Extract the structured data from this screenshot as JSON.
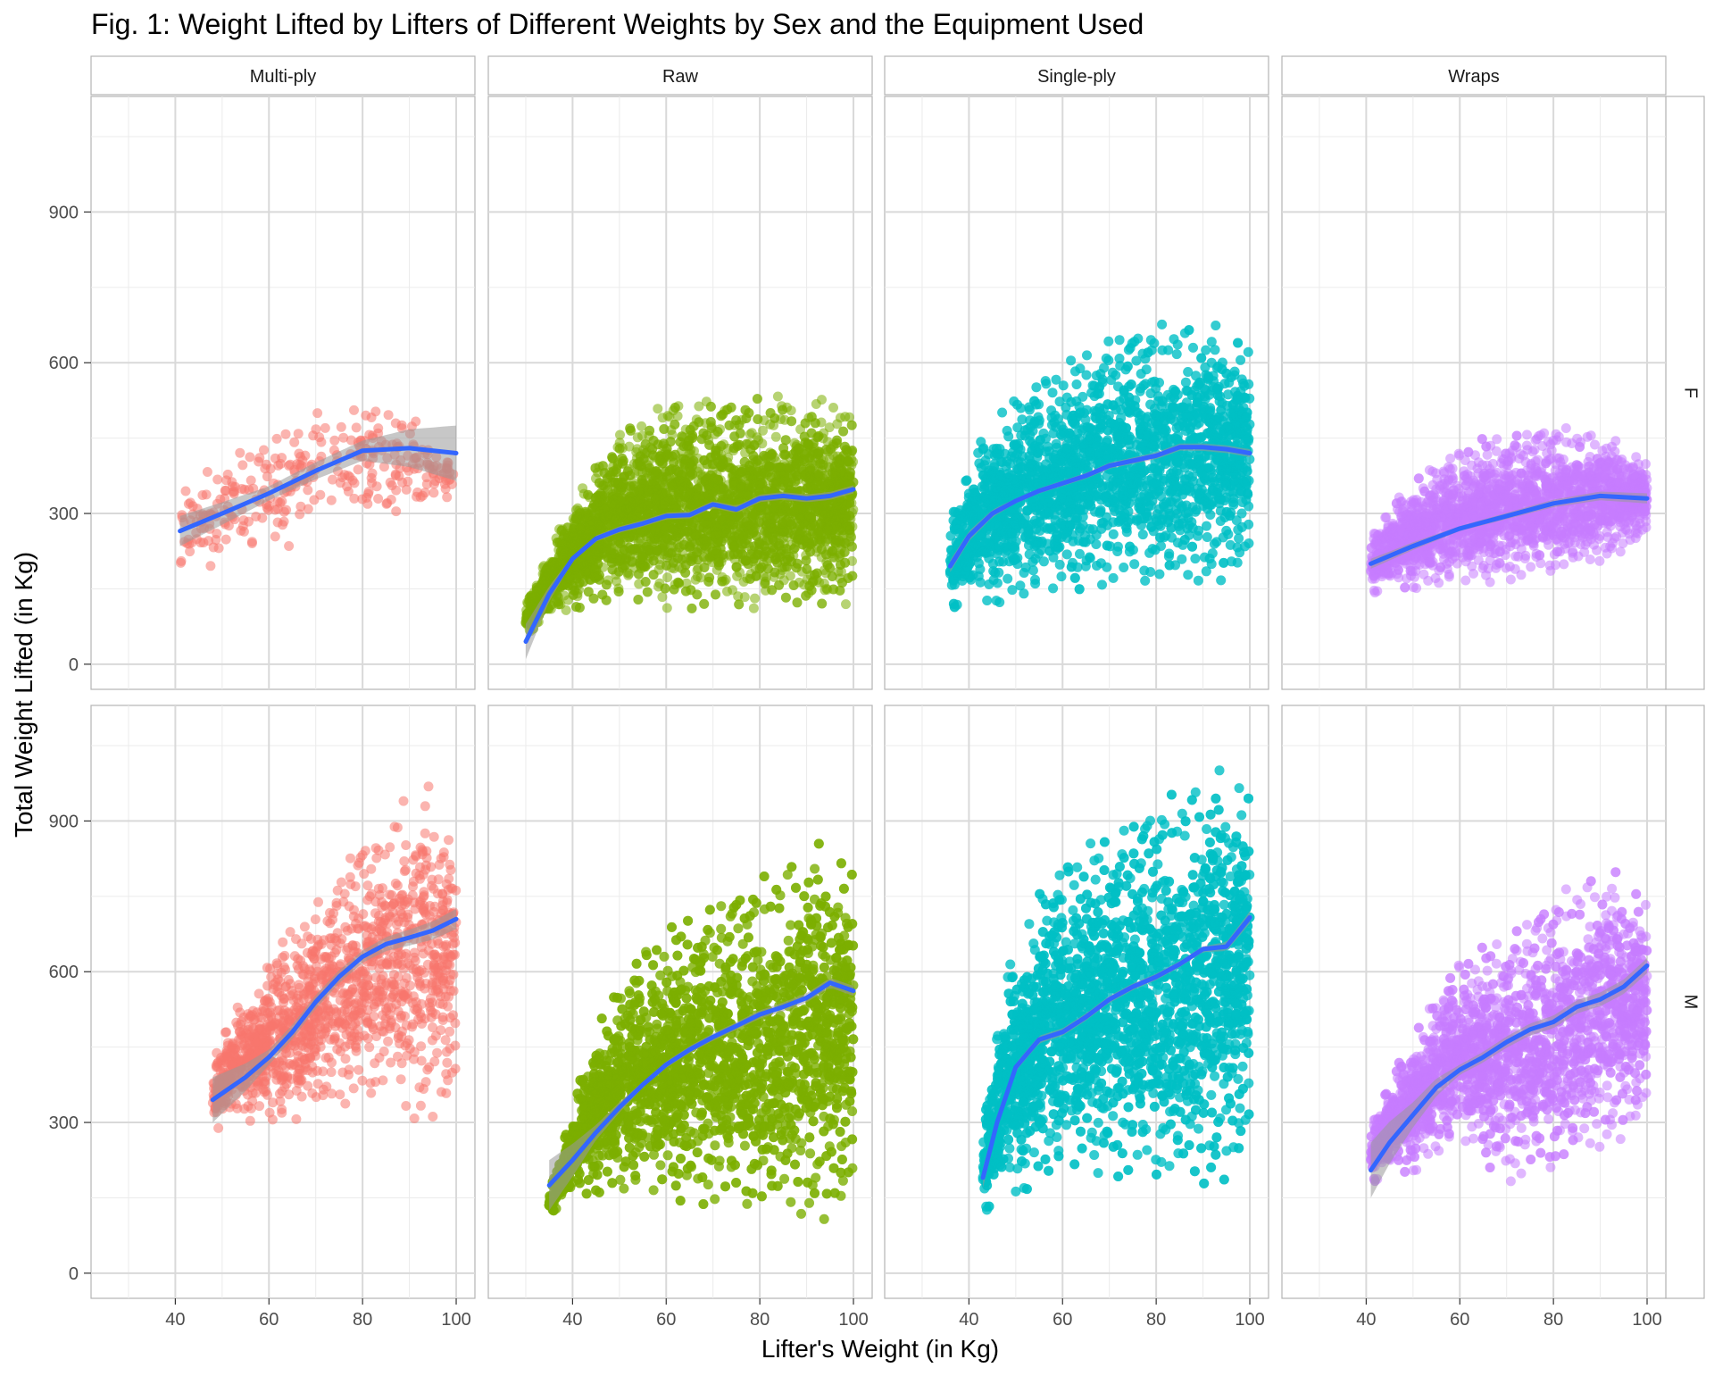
{
  "chart_data": {
    "type": "scatter",
    "title": "Fig. 1: Weight Lifted by Lifters of Different Weights by Sex and the Equipment Used",
    "xlabel": "Lifter's Weight (in Kg)",
    "ylabel": "Total Weight Lifted (in Kg)",
    "xlim": [
      22,
      104
    ],
    "ylim": [
      -50,
      1130
    ],
    "x_ticks": [
      "40",
      "60",
      "80",
      "100"
    ],
    "y_ticks": [
      "0",
      "300",
      "600",
      "900"
    ],
    "grid": true,
    "legend": "none",
    "columns": [
      "Multi-ply",
      "Raw",
      "Single-ply",
      "Wraps"
    ],
    "rows": [
      "F",
      "M"
    ],
    "colors": {
      "Multi-ply": "#F8766D",
      "Raw": "#7CAE00",
      "Single-ply": "#00BFC4",
      "Wraps": "#C77CFF",
      "smooth": "#3366FF",
      "ribbon": "#999999",
      "strip_fill": "#FFFFFF",
      "strip_border": "#B3B3B3",
      "grid_major": "#D9D9D9",
      "grid_minor": "#EBEBEB"
    },
    "panels": [
      {
        "equipment": "Multi-ply",
        "sex": "F",
        "x_range": [
          41,
          100
        ],
        "y_band": [
          [
            41,
            175,
            360
          ],
          [
            60,
            220,
            460
          ],
          [
            75,
            240,
            560
          ],
          [
            88,
            300,
            520
          ],
          [
            100,
            330,
            400
          ]
        ],
        "n_points": 320,
        "smooth": [
          [
            41,
            265
          ],
          [
            50,
            300
          ],
          [
            60,
            340
          ],
          [
            70,
            385
          ],
          [
            80,
            425
          ],
          [
            90,
            430
          ],
          [
            100,
            420
          ]
        ],
        "ribbon_halfwidth": [
          [
            41,
            30
          ],
          [
            60,
            14
          ],
          [
            80,
            20
          ],
          [
            100,
            55
          ]
        ]
      },
      {
        "equipment": "Raw",
        "sex": "F",
        "x_range": [
          30,
          100
        ],
        "y_band": [
          [
            30,
            60,
            120
          ],
          [
            40,
            110,
            330
          ],
          [
            50,
            120,
            460
          ],
          [
            60,
            110,
            520
          ],
          [
            80,
            110,
            540
          ],
          [
            100,
            120,
            530
          ]
        ],
        "n_points": 4200,
        "smooth": [
          [
            30,
            45
          ],
          [
            35,
            140
          ],
          [
            40,
            210
          ],
          [
            45,
            250
          ],
          [
            50,
            268
          ],
          [
            55,
            280
          ],
          [
            60,
            295
          ],
          [
            65,
            297
          ],
          [
            70,
            318
          ],
          [
            75,
            308
          ],
          [
            80,
            330
          ],
          [
            85,
            335
          ],
          [
            90,
            330
          ],
          [
            95,
            335
          ],
          [
            100,
            348
          ]
        ],
        "ribbon_halfwidth": [
          [
            30,
            35
          ],
          [
            35,
            15
          ],
          [
            40,
            6
          ],
          [
            100,
            8
          ]
        ]
      },
      {
        "equipment": "Single-ply",
        "sex": "F",
        "x_range": [
          36,
          100
        ],
        "y_band": [
          [
            36,
            110,
            300
          ],
          [
            45,
            120,
            500
          ],
          [
            55,
            130,
            560
          ],
          [
            70,
            160,
            660
          ],
          [
            85,
            150,
            700
          ],
          [
            100,
            170,
            690
          ]
        ],
        "n_points": 4200,
        "smooth": [
          [
            36,
            195
          ],
          [
            40,
            255
          ],
          [
            45,
            300
          ],
          [
            50,
            325
          ],
          [
            55,
            345
          ],
          [
            60,
            360
          ],
          [
            65,
            375
          ],
          [
            70,
            395
          ],
          [
            75,
            405
          ],
          [
            80,
            415
          ],
          [
            85,
            432
          ],
          [
            90,
            432
          ],
          [
            95,
            428
          ],
          [
            100,
            420
          ]
        ],
        "ribbon_halfwidth": [
          [
            36,
            12
          ],
          [
            50,
            5
          ],
          [
            100,
            8
          ]
        ]
      },
      {
        "equipment": "Wraps",
        "sex": "F",
        "x_range": [
          41,
          100
        ],
        "y_band": [
          [
            41,
            140,
            260
          ],
          [
            50,
            150,
            370
          ],
          [
            65,
            160,
            450
          ],
          [
            80,
            180,
            480
          ],
          [
            90,
            200,
            470
          ],
          [
            100,
            250,
            420
          ]
        ],
        "n_points": 2200,
        "smooth": [
          [
            41,
            200
          ],
          [
            50,
            235
          ],
          [
            60,
            270
          ],
          [
            70,
            295
          ],
          [
            80,
            320
          ],
          [
            90,
            335
          ],
          [
            100,
            330
          ]
        ],
        "ribbon_halfwidth": [
          [
            41,
            10
          ],
          [
            60,
            5
          ],
          [
            100,
            10
          ]
        ]
      },
      {
        "equipment": "Multi-ply",
        "sex": "M",
        "x_range": [
          48,
          100
        ],
        "y_band": [
          [
            48,
            280,
            440
          ],
          [
            55,
            300,
            560
          ],
          [
            65,
            290,
            690
          ],
          [
            75,
            320,
            830
          ],
          [
            85,
            360,
            900
          ],
          [
            90,
            290,
            1020
          ],
          [
            100,
            320,
            960
          ]
        ],
        "n_points": 1400,
        "smooth": [
          [
            48,
            345
          ],
          [
            55,
            390
          ],
          [
            60,
            430
          ],
          [
            65,
            480
          ],
          [
            70,
            540
          ],
          [
            75,
            590
          ],
          [
            80,
            630
          ],
          [
            85,
            655
          ],
          [
            90,
            668
          ],
          [
            95,
            682
          ],
          [
            100,
            705
          ]
        ],
        "ribbon_halfwidth": [
          [
            48,
            45
          ],
          [
            60,
            15
          ],
          [
            80,
            12
          ],
          [
            100,
            20
          ]
        ]
      },
      {
        "equipment": "Raw",
        "sex": "M",
        "x_range": [
          35,
          100
        ],
        "y_band": [
          [
            35,
            120,
            160
          ],
          [
            45,
            160,
            500
          ],
          [
            55,
            150,
            640
          ],
          [
            65,
            140,
            720
          ],
          [
            80,
            120,
            800
          ],
          [
            90,
            100,
            880
          ],
          [
            100,
            100,
            900
          ]
        ],
        "n_points": 5200,
        "smooth": [
          [
            35,
            175
          ],
          [
            40,
            225
          ],
          [
            45,
            280
          ],
          [
            50,
            330
          ],
          [
            55,
            375
          ],
          [
            60,
            415
          ],
          [
            65,
            445
          ],
          [
            70,
            470
          ],
          [
            75,
            492
          ],
          [
            80,
            515
          ],
          [
            85,
            530
          ],
          [
            90,
            548
          ],
          [
            95,
            578
          ],
          [
            100,
            562
          ]
        ],
        "ribbon_halfwidth": [
          [
            35,
            50
          ],
          [
            45,
            15
          ],
          [
            55,
            6
          ],
          [
            100,
            10
          ]
        ]
      },
      {
        "equipment": "Single-ply",
        "sex": "M",
        "x_range": [
          43,
          100
        ],
        "y_band": [
          [
            43,
            120,
            300
          ],
          [
            48,
            140,
            600
          ],
          [
            55,
            180,
            760
          ],
          [
            65,
            200,
            850
          ],
          [
            80,
            180,
            950
          ],
          [
            90,
            160,
            1020
          ],
          [
            100,
            200,
            1060
          ]
        ],
        "n_points": 5200,
        "smooth": [
          [
            43,
            190
          ],
          [
            46,
            300
          ],
          [
            50,
            410
          ],
          [
            55,
            465
          ],
          [
            60,
            480
          ],
          [
            65,
            510
          ],
          [
            70,
            545
          ],
          [
            75,
            570
          ],
          [
            80,
            590
          ],
          [
            85,
            615
          ],
          [
            90,
            645
          ],
          [
            95,
            650
          ],
          [
            100,
            708
          ]
        ],
        "ribbon_halfwidth": [
          [
            43,
            20
          ],
          [
            50,
            8
          ],
          [
            90,
            6
          ],
          [
            100,
            12
          ]
        ]
      },
      {
        "equipment": "Wraps",
        "sex": "M",
        "x_range": [
          41,
          100
        ],
        "y_band": [
          [
            41,
            180,
            300
          ],
          [
            50,
            200,
            480
          ],
          [
            60,
            260,
            620
          ],
          [
            70,
            180,
            680
          ],
          [
            80,
            200,
            760
          ],
          [
            90,
            240,
            830
          ],
          [
            100,
            290,
            800
          ]
        ],
        "n_points": 2800,
        "smooth": [
          [
            41,
            205
          ],
          [
            45,
            260
          ],
          [
            50,
            315
          ],
          [
            55,
            370
          ],
          [
            60,
            405
          ],
          [
            65,
            430
          ],
          [
            70,
            460
          ],
          [
            75,
            485
          ],
          [
            80,
            500
          ],
          [
            85,
            530
          ],
          [
            90,
            545
          ],
          [
            95,
            570
          ],
          [
            100,
            612
          ]
        ],
        "ribbon_halfwidth": [
          [
            41,
            55
          ],
          [
            50,
            25
          ],
          [
            60,
            10
          ],
          [
            100,
            15
          ]
        ]
      }
    ]
  }
}
